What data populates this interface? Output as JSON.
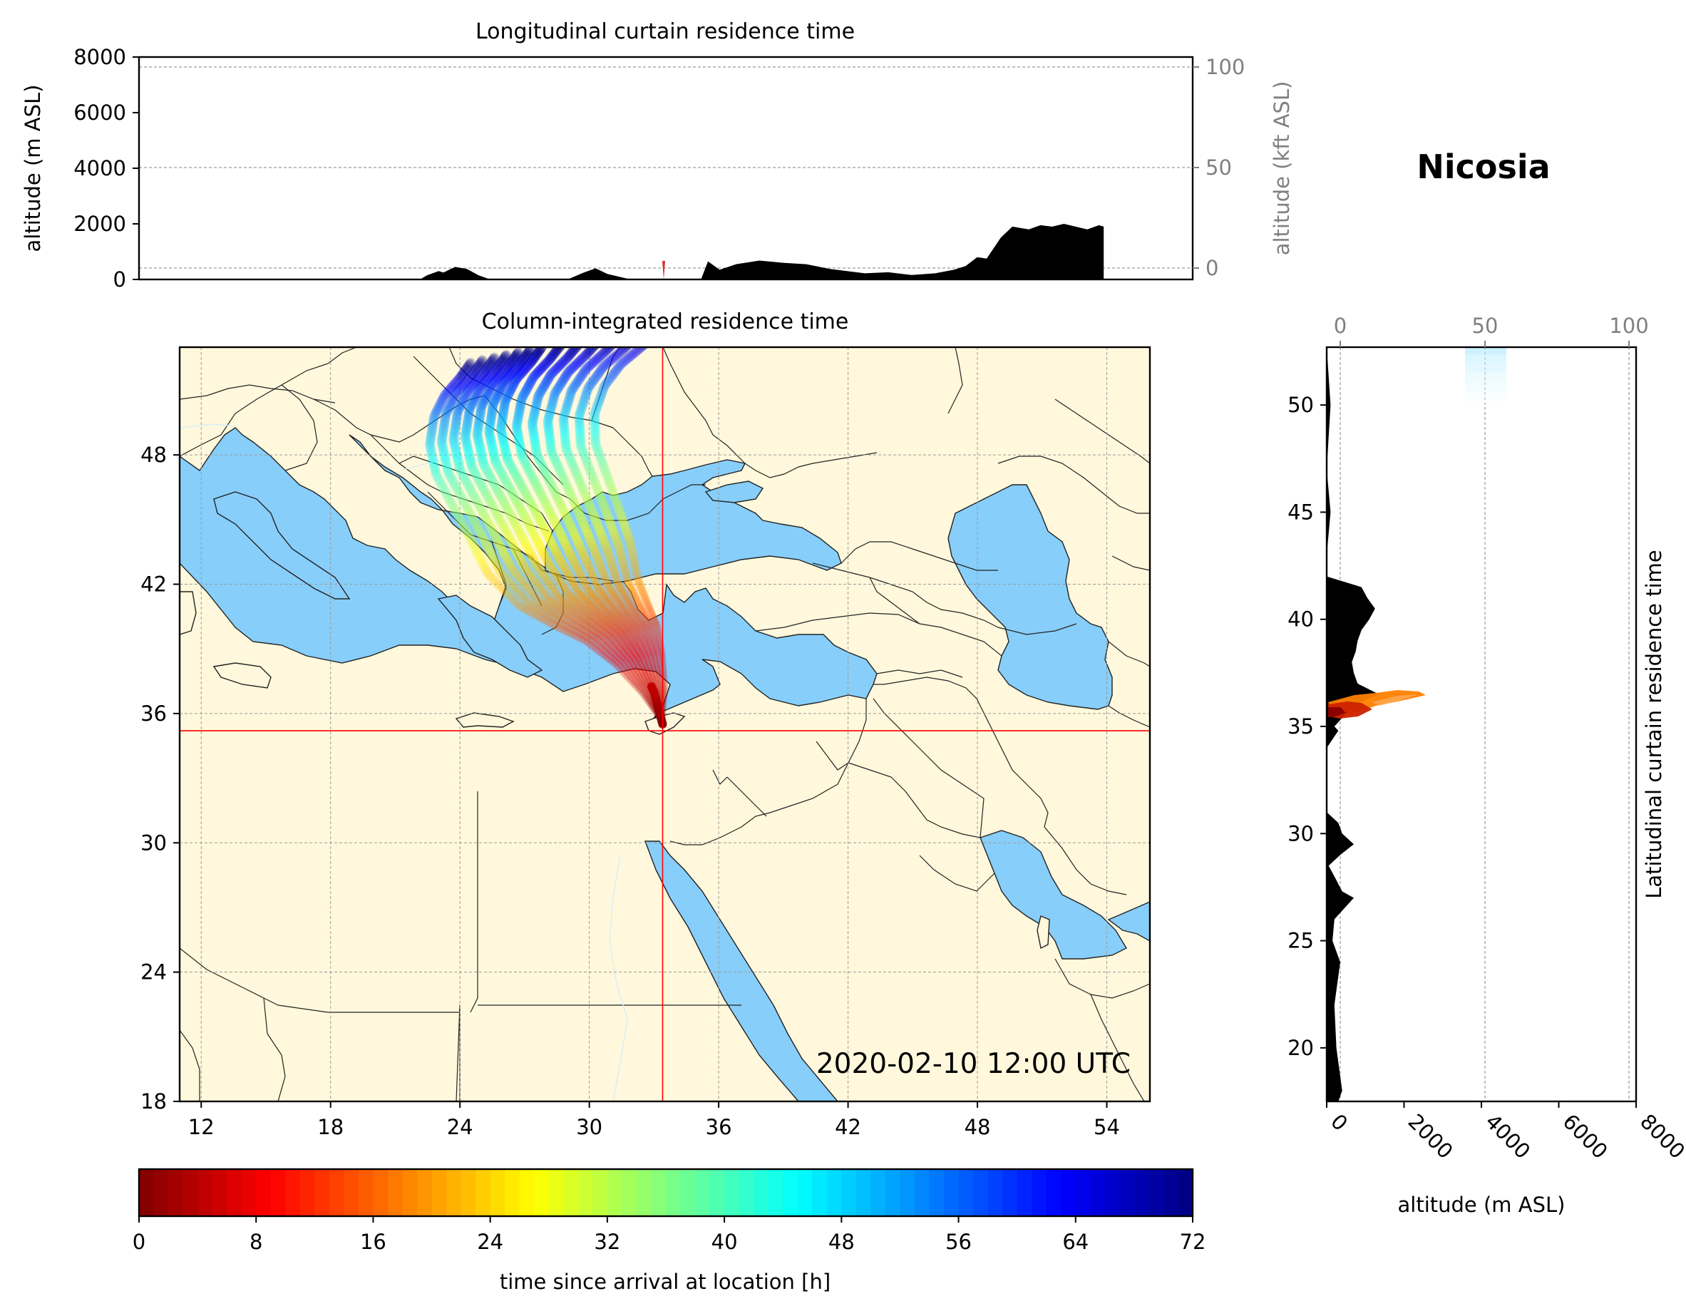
{
  "figure": {
    "site_name": "Nicosia",
    "timestamp": "2020-02-10 12:00 UTC"
  },
  "chart_data": [
    {
      "type": "area",
      "title": "Longitudinal curtain residence time",
      "xlabel": "",
      "ylabel": "altitude (m ASL)",
      "ylabel_right": "altitude (kft ASL)",
      "x_range_lon": [
        11,
        56
      ],
      "ylim": [
        0,
        8000
      ],
      "y_ticks": [
        "0",
        "2000",
        "4000",
        "6000",
        "8000"
      ],
      "y_right_ticks": [
        "0",
        "50",
        "100"
      ],
      "grid": true,
      "terrain_profile": {
        "lon": [
          11,
          23,
          23.3,
          23.8,
          24,
          24.5,
          25,
          25.5,
          26,
          29.3,
          30,
          30.5,
          31,
          32,
          35,
          35.3,
          35.8,
          36.5,
          37.5,
          38.5,
          39.5,
          40.5,
          42,
          43,
          44,
          45,
          45.8,
          46.3,
          46.8,
          47.2,
          47.8,
          48.3,
          49,
          49.5,
          50,
          50.5,
          51,
          51.5,
          52,
          52.2
        ],
        "alt": [
          0,
          0,
          150,
          300,
          250,
          450,
          380,
          150,
          0,
          0,
          250,
          400,
          200,
          0,
          0,
          650,
          350,
          550,
          680,
          600,
          550,
          380,
          220,
          260,
          160,
          220,
          350,
          480,
          800,
          750,
          1500,
          1900,
          1800,
          1950,
          1900,
          2000,
          1900,
          1800,
          1950,
          1900
        ]
      }
    },
    {
      "type": "scatter",
      "title": "Column-integrated residence time",
      "x_ticks": [
        "12",
        "18",
        "24",
        "30",
        "36",
        "42",
        "48",
        "54"
      ],
      "y_ticks": [
        "18",
        "24",
        "30",
        "36",
        "42",
        "48"
      ],
      "x_range_lon": [
        11,
        56
      ],
      "y_range_lat": [
        18,
        53
      ],
      "grid": true,
      "site": {
        "lon": 33.4,
        "lat": 35.2
      },
      "trajectory_spine": {
        "lon": [
          33.4,
          33.0,
          32.3,
          31.5,
          30.5,
          29.5,
          28.6,
          27.8,
          27.0,
          26.2,
          25.9,
          26.1,
          26.6,
          27.3,
          27.8
        ],
        "lat": [
          35.5,
          37.0,
          38.5,
          39.7,
          40.6,
          41.6,
          43.2,
          44.8,
          46.3,
          47.8,
          49.2,
          50.5,
          51.5,
          52.3,
          53.0
        ],
        "hours": [
          0,
          4,
          8,
          12,
          16,
          20,
          24,
          30,
          36,
          42,
          48,
          54,
          60,
          66,
          72
        ]
      }
    },
    {
      "type": "area",
      "ylabel_right": "Latitudinal curtain residence time",
      "xlabel": "altitude (m ASL)",
      "x_ticks": [
        "0",
        "2000",
        "4000",
        "6000",
        "8000"
      ],
      "x_top_ticks": [
        "0",
        "50",
        "100"
      ],
      "xlim": [
        0,
        8000
      ],
      "y_ticks": [
        "20",
        "25",
        "30",
        "35",
        "40",
        "45",
        "50"
      ],
      "y_range_lat": [
        17.5,
        52.7
      ],
      "grid": true,
      "terrain_profile": {
        "lat": [
          17.5,
          18,
          20,
          22,
          24,
          25,
          26,
          26.5,
          27,
          27.3,
          28,
          28.5,
          29,
          29.5,
          30,
          30.5,
          31,
          32,
          33,
          34,
          34.8,
          35,
          35.5,
          36,
          36.5,
          37,
          37.5,
          38,
          38.5,
          39,
          39.5,
          40,
          40.5,
          41,
          41.5,
          42,
          43,
          45,
          47,
          50,
          52.7
        ],
        "alt": [
          300,
          400,
          250,
          200,
          350,
          150,
          200,
          450,
          700,
          400,
          200,
          50,
          350,
          700,
          400,
          300,
          0,
          0,
          0,
          0,
          300,
          200,
          450,
          700,
          1350,
          800,
          700,
          650,
          750,
          800,
          900,
          1100,
          1250,
          1050,
          900,
          0,
          0,
          100,
          0,
          100,
          0
        ]
      }
    },
    {
      "type": "colorbar",
      "label": "time since arrival at location [h]",
      "ticks": [
        "0",
        "8",
        "16",
        "24",
        "32",
        "40",
        "48",
        "56",
        "64",
        "72"
      ],
      "range": [
        0,
        72
      ],
      "colormap": "jet_r"
    }
  ]
}
